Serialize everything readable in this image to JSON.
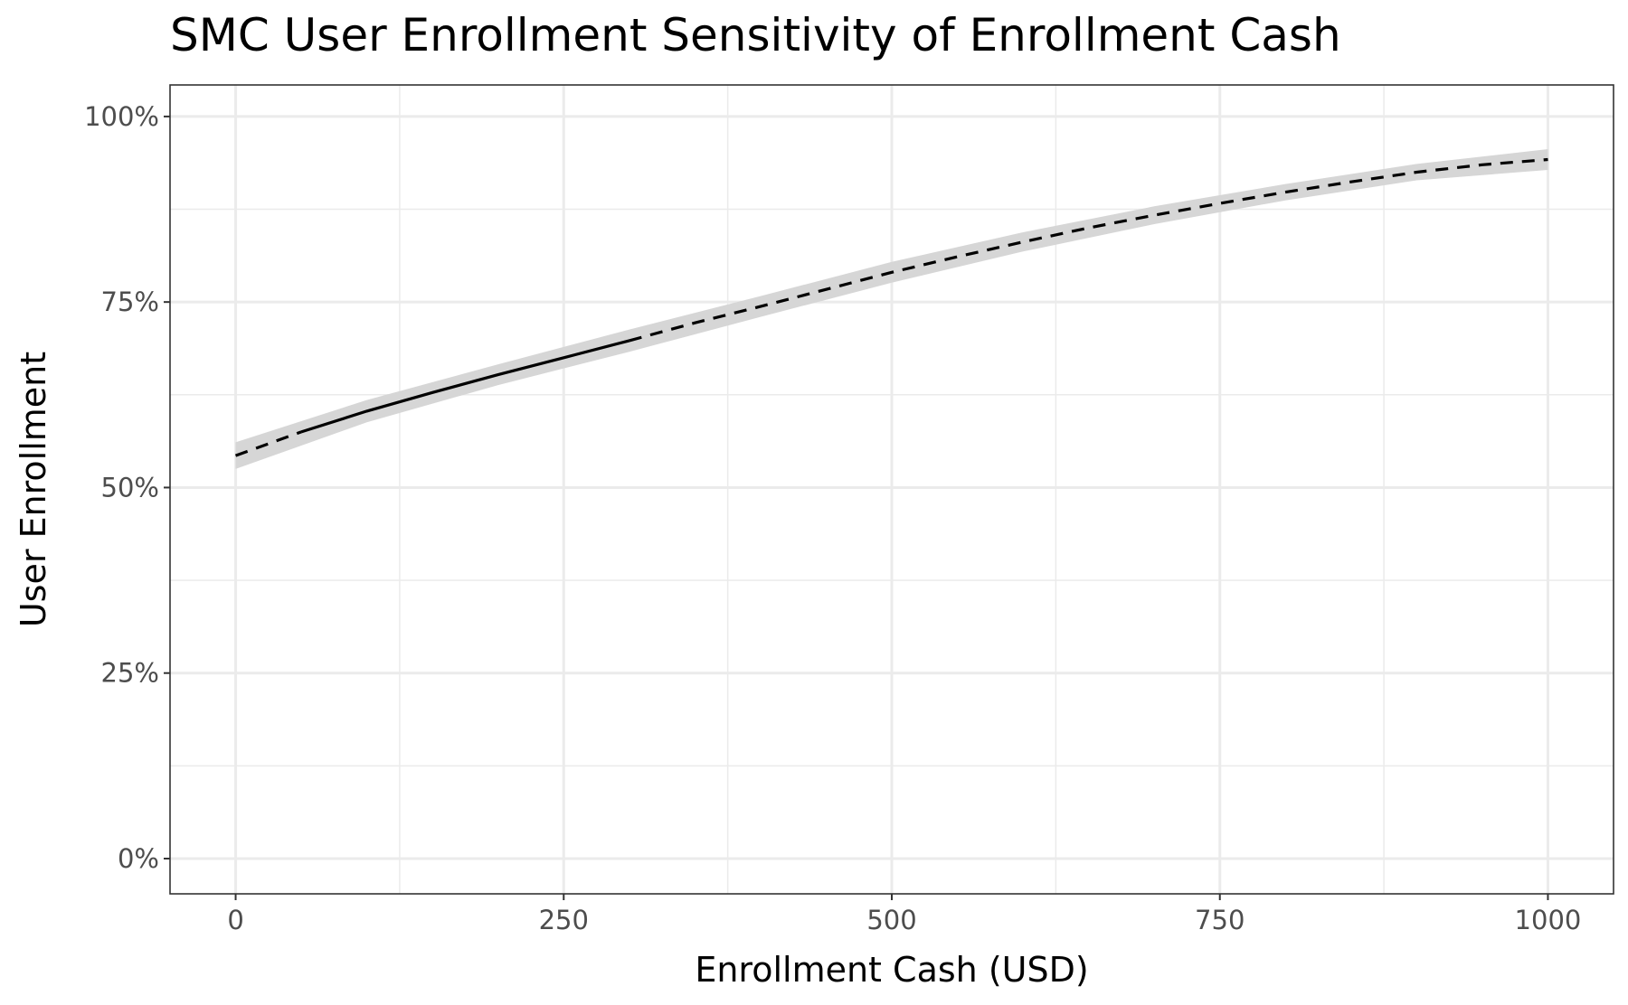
{
  "chart_data": {
    "type": "line",
    "title": "SMC User Enrollment Sensitivity of Enrollment Cash",
    "xlabel": "Enrollment Cash (USD)",
    "ylabel": "User Enrollment",
    "xlim": [
      -50,
      1050
    ],
    "ylim": [
      -0.0475,
      1.0425
    ],
    "x_ticks": [
      0,
      250,
      500,
      750,
      1000
    ],
    "x_tick_labels": [
      "0",
      "250",
      "500",
      "750",
      "1000"
    ],
    "y_ticks": [
      0,
      0.25,
      0.5,
      0.75,
      1.0
    ],
    "y_tick_labels": [
      "0%",
      "25%",
      "50%",
      "75%",
      "100%"
    ],
    "grid": true,
    "legend": "none",
    "line_color": "#000000",
    "ribbon_color": "#d6d6d6",
    "series": [
      {
        "style": "dashed",
        "x": [
          0,
          50
        ],
        "y": [
          0.543,
          0.575
        ]
      },
      {
        "style": "solid",
        "x": [
          50,
          100,
          150,
          200,
          250,
          300
        ],
        "y": [
          0.575,
          0.603,
          0.628,
          0.652,
          0.675,
          0.698
        ]
      },
      {
        "style": "dashed",
        "x": [
          300,
          350,
          400,
          450,
          500,
          550,
          600,
          650,
          700,
          750,
          800,
          850,
          900,
          950,
          1000
        ],
        "y": [
          0.698,
          0.722,
          0.744,
          0.767,
          0.79,
          0.811,
          0.831,
          0.85,
          0.867,
          0.883,
          0.898,
          0.912,
          0.925,
          0.935,
          0.942
        ]
      }
    ],
    "ribbon": {
      "x": [
        0,
        100,
        200,
        300,
        400,
        500,
        600,
        700,
        800,
        900,
        1000
      ],
      "lower": [
        0.525,
        0.588,
        0.638,
        0.683,
        0.73,
        0.776,
        0.818,
        0.855,
        0.887,
        0.914,
        0.928
      ],
      "upper": [
        0.561,
        0.618,
        0.666,
        0.713,
        0.758,
        0.804,
        0.844,
        0.879,
        0.909,
        0.936,
        0.956
      ]
    }
  }
}
